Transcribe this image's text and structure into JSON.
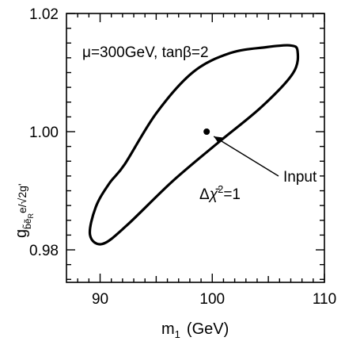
{
  "chart_data": {
    "type": "scatter",
    "xlabel": {
      "main": "m",
      "sub": "1",
      "unit": "(GeV)"
    },
    "ylabel": {
      "main": "g",
      "sub": "b̃ẽ",
      "subsub": "R",
      "rest": "e/√2g'"
    },
    "xlim": [
      87,
      110
    ],
    "ylim": [
      0.9745,
      1.02
    ],
    "x_ticks": [
      90,
      100,
      110
    ],
    "x_tick_labels": [
      "90",
      "100",
      "110"
    ],
    "y_ticks": [
      0.98,
      1.0,
      1.02
    ],
    "y_tick_labels": [
      "0.98",
      "1.00",
      "1.02"
    ],
    "grid": false,
    "parameters_label": "μ=300GeV, tanβ=2",
    "series": [
      {
        "kind": "contour",
        "label": "Δχ̄²=1",
        "points": [
          [
            92.2,
            0.9945
          ],
          [
            95.0,
            1.0031
          ],
          [
            98.3,
            1.0101
          ],
          [
            101.6,
            1.0133
          ],
          [
            104.8,
            1.0143
          ],
          [
            106.9,
            1.0146
          ],
          [
            107.6,
            1.0137
          ],
          [
            107.2,
            1.0099
          ],
          [
            104.4,
            1.0042
          ],
          [
            100.5,
            0.9981
          ],
          [
            96.4,
            0.9915
          ],
          [
            92.3,
            0.984
          ],
          [
            90.2,
            0.981
          ],
          [
            89.1,
            0.9825
          ],
          [
            89.6,
            0.9872
          ],
          [
            90.8,
            0.9912
          ]
        ]
      },
      {
        "kind": "point",
        "label": "Input",
        "x": 99.5,
        "y": 1.0
      }
    ],
    "contour_label_parts": {
      "delta": "Δ",
      "chi": "χ̄",
      "sup": "2",
      "eq": "=1"
    }
  }
}
